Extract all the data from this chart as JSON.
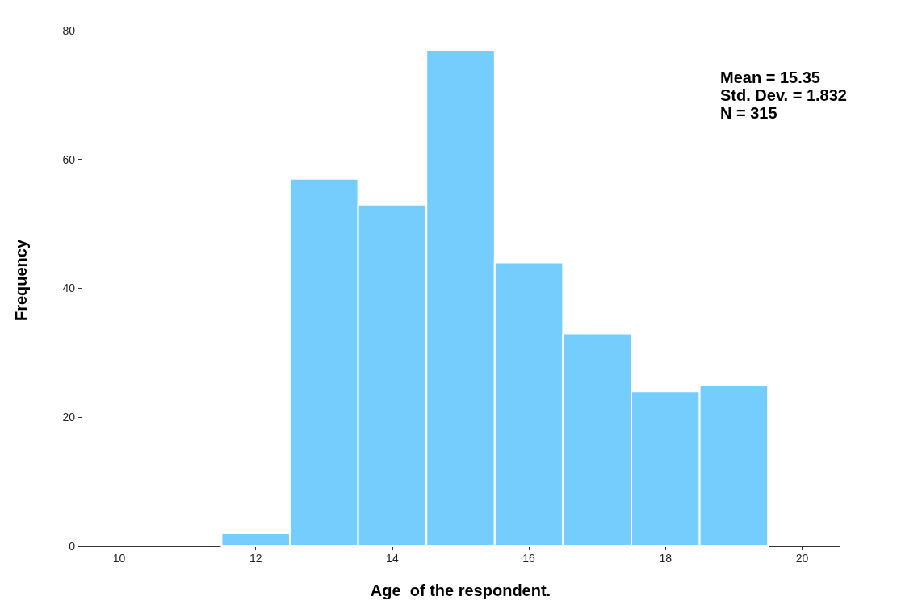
{
  "chart_data": {
    "type": "histogram",
    "xlabel": "Age  of the respondent.",
    "ylabel": "Frequency",
    "bins": [
      11.5,
      12.5,
      13.5,
      14.5,
      15.5,
      16.5,
      17.5,
      18.5,
      19.5
    ],
    "values": [
      2,
      57,
      53,
      77,
      44,
      33,
      24,
      25
    ],
    "color": "#75cdfd",
    "xlim": [
      9.45,
      20.55
    ],
    "xticks": [
      10,
      12,
      14,
      16,
      18,
      20
    ],
    "ylim": [
      0,
      82.5
    ],
    "yticks": [
      0,
      20,
      40,
      60,
      80
    ],
    "grid": false,
    "annotations": [
      "Mean = 15.35",
      "Std. Dev. = 1.832",
      "N = 315"
    ]
  }
}
